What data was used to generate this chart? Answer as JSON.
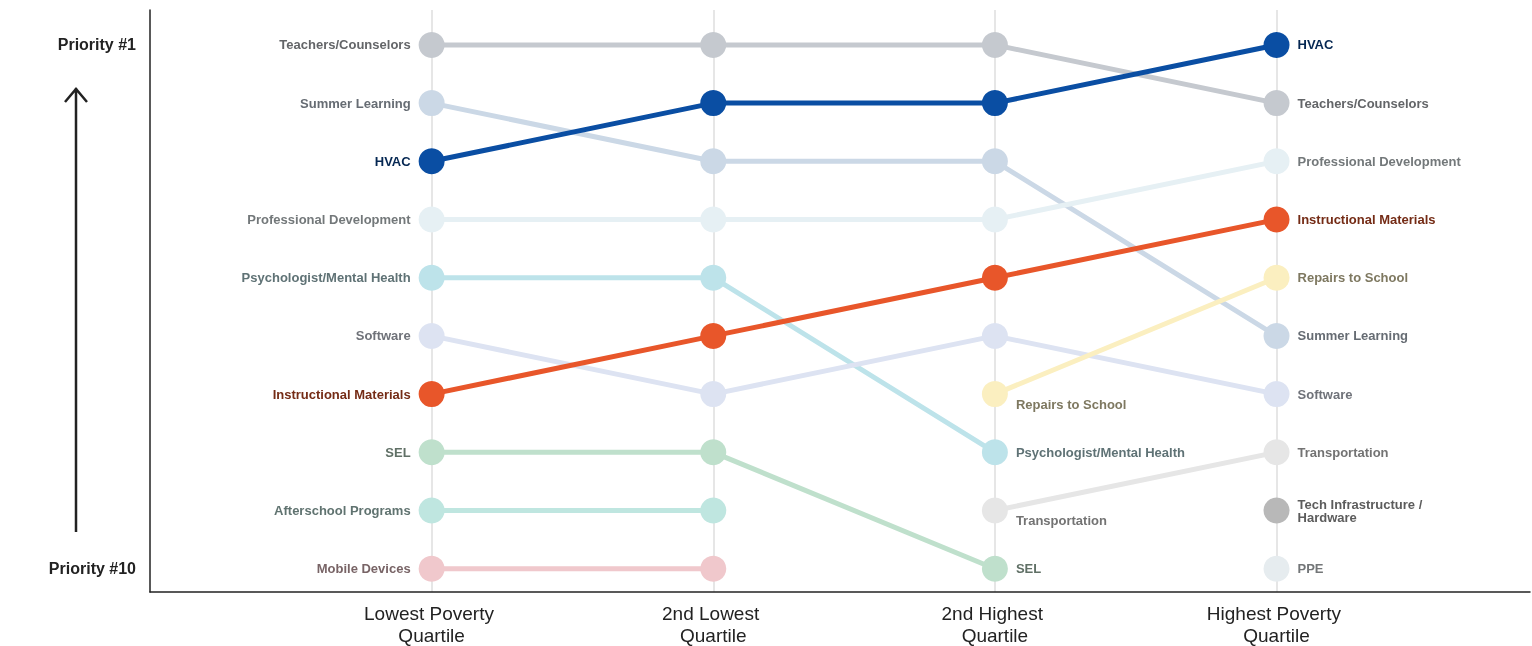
{
  "chart_data": {
    "type": "line",
    "categories": [
      "Lowest Poverty Quartile",
      "2nd Lowest Quartile",
      "2nd Highest Quartile",
      "Highest Poverty Quartile"
    ],
    "ylim": [
      10.4,
      0.4
    ],
    "yticks": [
      {
        "value": 1,
        "label": "Priority #1"
      },
      {
        "value": 10,
        "label": "Priority #10"
      }
    ],
    "grid": "x",
    "marker": "circle",
    "line_style": "solid",
    "series": [
      {
        "name": "Teachers/Counselors",
        "color": "#c5c9cf",
        "values": [
          1,
          1,
          1,
          2
        ]
      },
      {
        "name": "Summer Learning",
        "color": "#cbd8e6",
        "values": [
          2,
          3,
          3,
          6
        ]
      },
      {
        "name": "HVAC",
        "color": "#0a4ea3",
        "values": [
          3,
          2,
          2,
          1
        ]
      },
      {
        "name": "Professional Development",
        "color": "#e6f0f4",
        "values": [
          4,
          4,
          4,
          3
        ]
      },
      {
        "name": "Psychologist/Mental Health",
        "color": "#bde3ea",
        "values": [
          5,
          5,
          8,
          null
        ]
      },
      {
        "name": "Software",
        "color": "#dde3f2",
        "values": [
          6,
          7,
          6,
          7
        ]
      },
      {
        "name": "Instructional Materials",
        "color": "#e8562a",
        "values": [
          7,
          6,
          5,
          4
        ]
      },
      {
        "name": "SEL",
        "color": "#bfe0cc",
        "values": [
          8,
          8,
          10,
          null
        ]
      },
      {
        "name": "Afterschool Programs",
        "color": "#bfe6e0",
        "values": [
          9,
          9,
          null,
          null
        ]
      },
      {
        "name": "Mobile Devices",
        "color": "#f0c8cc",
        "values": [
          10,
          10,
          null,
          null
        ]
      },
      {
        "name": "Repairs to School",
        "color": "#fbefc0",
        "values": [
          null,
          null,
          7,
          5
        ]
      },
      {
        "name": "Transportation",
        "color": "#e6e6e6",
        "values": [
          null,
          null,
          9,
          8
        ]
      },
      {
        "name": "Tech Infrastructure / Hardware",
        "color": "#b8b8b8",
        "values": [
          null,
          null,
          null,
          9
        ]
      },
      {
        "name": "PPE",
        "color": "#e6ecef",
        "values": [
          null,
          null,
          null,
          10
        ]
      }
    ]
  }
}
